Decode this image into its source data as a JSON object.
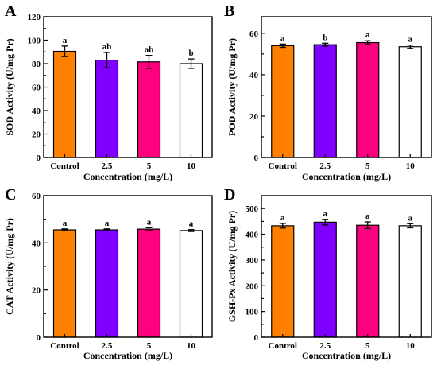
{
  "chart_data": [
    {
      "type": "bar",
      "panel_label": "A",
      "categories": [
        "Control",
        "2.5",
        "5",
        "10"
      ],
      "values": [
        90.5,
        83,
        81.5,
        80
      ],
      "errors": [
        4.5,
        6.5,
        5.5,
        4
      ],
      "significance": [
        "a",
        "ab",
        "ab",
        "b"
      ],
      "xlabel": "Concentration (mg/L)",
      "ylabel": "SOD Activity  (U/mg Pr)",
      "ylim": [
        0,
        120
      ],
      "yticks": [
        0,
        20,
        40,
        60,
        80,
        100,
        120
      ],
      "grid": false
    },
    {
      "type": "bar",
      "panel_label": "B",
      "categories": [
        "Control",
        "2.5",
        "5",
        "10"
      ],
      "values": [
        54,
        54.5,
        55.5,
        53.5
      ],
      "errors": [
        0.8,
        0.7,
        0.9,
        0.8
      ],
      "significance": [
        "a",
        "b",
        "a",
        "a"
      ],
      "xlabel": "Concentration (mg/L)",
      "ylabel": "POD Activity  (U/mg Pr)",
      "ylim": [
        0,
        68
      ],
      "yticks": [
        0,
        20,
        40,
        60
      ],
      "grid": false
    },
    {
      "type": "bar",
      "panel_label": "C",
      "categories": [
        "Control",
        "2.5",
        "5",
        "10"
      ],
      "values": [
        45.5,
        45.5,
        45.8,
        45.2
      ],
      "errors": [
        0.4,
        0.4,
        0.6,
        0.4
      ],
      "significance": [
        "a",
        "a",
        "a",
        "a"
      ],
      "xlabel": "Concentration (mg/L)",
      "ylabel": "CAT Activity  (U/mg Pr)",
      "ylim": [
        0,
        60
      ],
      "yticks": [
        0,
        20,
        40,
        60
      ],
      "grid": false
    },
    {
      "type": "bar",
      "panel_label": "D",
      "categories": [
        "Control",
        "2.5",
        "5",
        "10"
      ],
      "values": [
        433,
        447,
        435,
        433
      ],
      "errors": [
        9,
        11,
        13,
        8
      ],
      "significance": [
        "a",
        "a",
        "a",
        "a"
      ],
      "xlabel": "Concentration (mg/L)",
      "ylabel": "GSH-Px Activity  (U/mg Pr)",
      "ylim": [
        0,
        550
      ],
      "yticks": [
        0,
        100,
        200,
        300,
        400,
        500
      ],
      "grid": false
    }
  ],
  "colors": {
    "bars": [
      "#ff8000",
      "#8000ff",
      "#ff0080",
      "#ffffff"
    ],
    "axis": "#000000"
  }
}
